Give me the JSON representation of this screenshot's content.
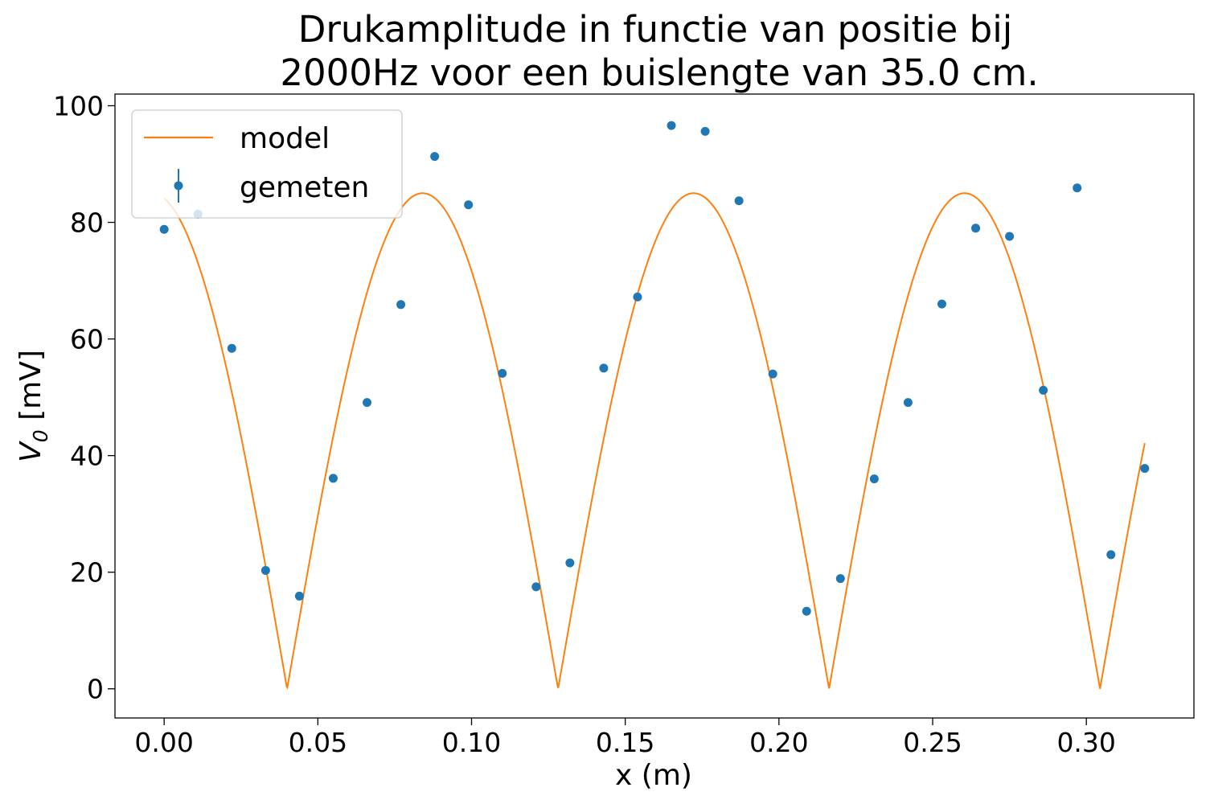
{
  "chart_data": {
    "type": "scatter",
    "title_lines": [
      "Drukamplitude in functie van positie bij",
      "2000Hz voor een buislengte van 35.0 cm."
    ],
    "xlabel": "x (m)",
    "ylabel_main": "V",
    "ylabel_sub": "0",
    "ylabel_unit": " [mV]",
    "xlim": [
      -0.016,
      0.335
    ],
    "ylim": [
      -5,
      102
    ],
    "x_ticks": [
      0.0,
      0.05,
      0.1,
      0.15,
      0.2,
      0.25,
      0.3
    ],
    "x_tick_labels": [
      "0.00",
      "0.05",
      "0.10",
      "0.15",
      "0.20",
      "0.25",
      "0.30"
    ],
    "y_ticks": [
      0,
      20,
      40,
      60,
      80,
      100
    ],
    "y_tick_labels": [
      "0",
      "20",
      "40",
      "60",
      "80",
      "100"
    ],
    "grid": false,
    "legend_position": "upper-left",
    "series": [
      {
        "name": "model",
        "kind": "line",
        "color": "#ff7f0e",
        "amplitude": 85,
        "wavelength_m": 0.1763,
        "node_x_m": 0.04,
        "x_range": [
          0.0,
          0.319
        ]
      },
      {
        "name": "gemeten",
        "kind": "errorbar-points",
        "color": "#1f77b4",
        "x": [
          0.0,
          0.011,
          0.022,
          0.033,
          0.044,
          0.055,
          0.066,
          0.077,
          0.088,
          0.099,
          0.11,
          0.121,
          0.132,
          0.143,
          0.154,
          0.165,
          0.176,
          0.187,
          0.198,
          0.209,
          0.22,
          0.231,
          0.242,
          0.253,
          0.264,
          0.275,
          0.286,
          0.297,
          0.308,
          0.319
        ],
        "y": [
          78.8,
          81.4,
          58.4,
          20.3,
          15.9,
          36.1,
          49.1,
          65.9,
          91.3,
          83.0,
          54.1,
          17.5,
          21.6,
          55.0,
          67.2,
          96.6,
          95.6,
          83.7,
          54.0,
          13.3,
          18.9,
          36.0,
          49.1,
          66.0,
          79.0,
          77.6,
          51.2,
          85.9,
          23.0,
          37.8
        ]
      }
    ]
  }
}
